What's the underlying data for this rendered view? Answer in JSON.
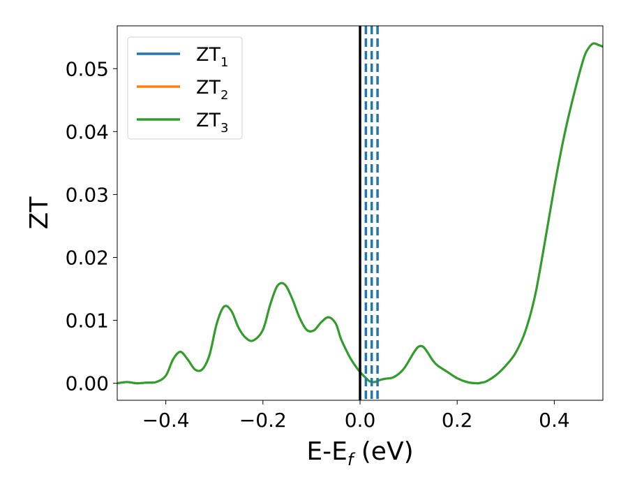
{
  "chart_data": {
    "type": "line",
    "xlabel": "E-E",
    "xlabel_sub": "f",
    "xlabel_unit": " (eV)",
    "ylabel": "ZT",
    "xlim": [
      -0.5,
      0.5
    ],
    "ylim": [
      -0.0027,
      0.0568
    ],
    "x_ticks": [
      -0.4,
      -0.2,
      0.0,
      0.2,
      0.4
    ],
    "x_tick_labels": [
      "−0.4",
      "−0.2",
      "0.0",
      "0.2",
      "0.4"
    ],
    "y_ticks": [
      0.0,
      0.01,
      0.02,
      0.03,
      0.04,
      0.05
    ],
    "y_tick_labels": [
      "0.00",
      "0.01",
      "0.02",
      "0.03",
      "0.04",
      "0.05"
    ],
    "grid": false,
    "legend_position": "top-left",
    "series": [
      {
        "name": "ZT",
        "sub": "1",
        "color": "#1f77b4"
      },
      {
        "name": "ZT",
        "sub": "2",
        "color": "#ff7f0e"
      },
      {
        "name": "ZT",
        "sub": "3",
        "color": "#2ca02c"
      }
    ],
    "curve": {
      "x": [
        -0.5,
        -0.48,
        -0.46,
        -0.44,
        -0.42,
        -0.4,
        -0.385,
        -0.37,
        -0.355,
        -0.34,
        -0.325,
        -0.31,
        -0.295,
        -0.28,
        -0.265,
        -0.25,
        -0.235,
        -0.22,
        -0.2,
        -0.185,
        -0.17,
        -0.155,
        -0.14,
        -0.125,
        -0.11,
        -0.095,
        -0.08,
        -0.065,
        -0.05,
        -0.04,
        -0.03,
        -0.02,
        -0.01,
        0.0,
        0.01,
        0.02,
        0.03,
        0.04,
        0.05,
        0.07,
        0.09,
        0.11,
        0.12,
        0.13,
        0.14,
        0.15,
        0.16,
        0.18,
        0.2,
        0.22,
        0.24,
        0.25,
        0.26,
        0.28,
        0.3,
        0.32,
        0.34,
        0.36,
        0.38,
        0.4,
        0.42,
        0.44,
        0.46,
        0.47,
        0.48,
        0.49,
        0.5
      ],
      "y": [
        0.0,
        0.0002,
        0.0,
        0.0001,
        0.0002,
        0.0012,
        0.0038,
        0.005,
        0.0038,
        0.0022,
        0.0022,
        0.0045,
        0.0095,
        0.0122,
        0.0115,
        0.0088,
        0.0072,
        0.0068,
        0.0085,
        0.0125,
        0.0155,
        0.0157,
        0.0135,
        0.0105,
        0.0085,
        0.0084,
        0.0097,
        0.0105,
        0.0095,
        0.0072,
        0.0055,
        0.004,
        0.0028,
        0.0018,
        0.001,
        0.0003,
        0.0002,
        0.0005,
        0.0007,
        0.001,
        0.0023,
        0.0048,
        0.0058,
        0.0058,
        0.0048,
        0.0036,
        0.0028,
        0.0018,
        0.0008,
        0.0002,
        0.0,
        0.0001,
        0.0003,
        0.0013,
        0.0028,
        0.0048,
        0.0082,
        0.0138,
        0.0222,
        0.0312,
        0.0392,
        0.0458,
        0.0515,
        0.0532,
        0.054,
        0.0538,
        0.0535
      ]
    },
    "fermi_line_x": 0.0,
    "dashed_lines_x": [
      0.012,
      0.024,
      0.036
    ]
  }
}
